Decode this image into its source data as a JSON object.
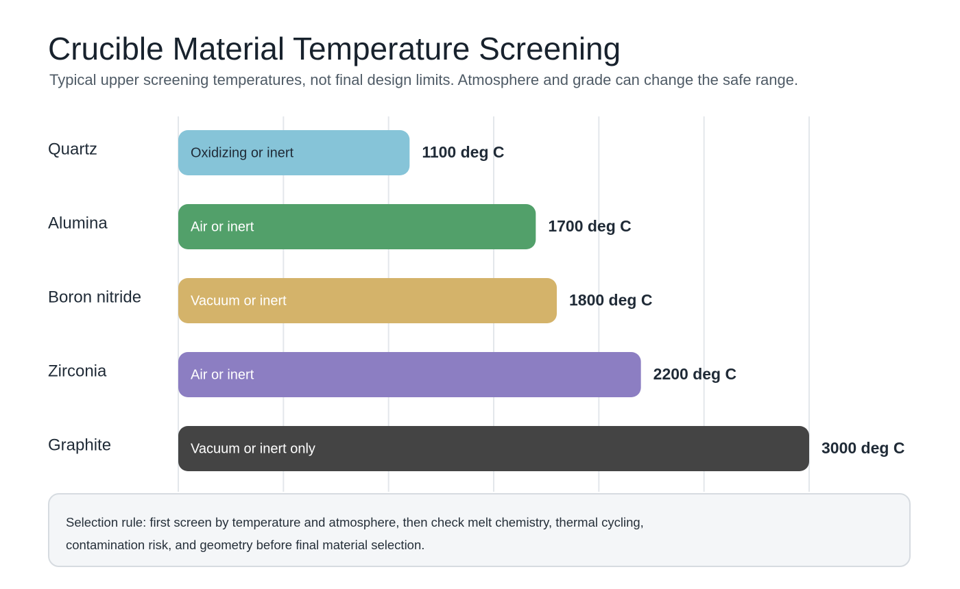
{
  "header": {
    "title": "Crucible Material Temperature Screening",
    "subtitle": "Typical upper screening temperatures, not final design limits. Atmosphere and grade can change the safe range."
  },
  "chart_data": {
    "type": "bar",
    "orientation": "horizontal",
    "title": "Crucible Material Temperature Screening",
    "subtitle": "Typical upper screening temperatures, not final design limits. Atmosphere and grade can change the safe range.",
    "xlabel": "",
    "ylabel": "",
    "xlim": [
      0,
      3000
    ],
    "grid": true,
    "unit_suffix": " deg C",
    "categories": [
      "Quartz",
      "Alumina",
      "Boron nitride",
      "Zirconia",
      "Graphite"
    ],
    "values": [
      1100,
      1700,
      1800,
      2200,
      3000
    ],
    "bar_labels": [
      "Oxidizing or inert",
      "Air or inert",
      "Vacuum or inert",
      "Air or inert",
      "Vacuum or inert only"
    ],
    "value_labels": [
      "1100 deg C",
      "1700 deg C",
      "1800 deg C",
      "2200 deg C",
      "3000 deg C"
    ],
    "colors": [
      "#86c4d8",
      "#52a06a",
      "#d4b36a",
      "#8c7ec2",
      "#444444"
    ],
    "bar_label_colors": [
      "#1f2a36",
      "#ffffff",
      "#ffffff",
      "#ffffff",
      "#ffffff"
    ]
  },
  "note": {
    "line1": "Selection rule: first screen by temperature and atmosphere, then check melt chemistry, thermal cycling,",
    "line2": "contamination risk, and geometry before final material selection."
  }
}
